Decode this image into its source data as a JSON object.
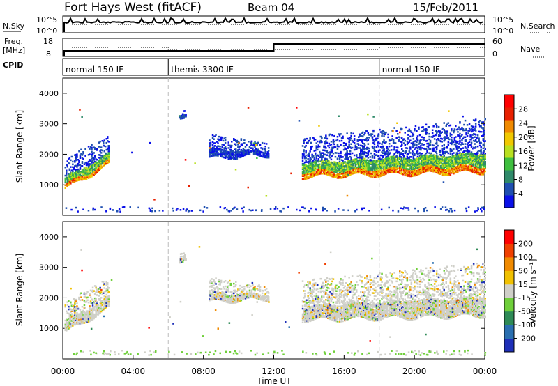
{
  "header": {
    "title": "Fort Hays West (fitACF)",
    "beam": "Beam 04",
    "date": "15/Feb/2011"
  },
  "strips": {
    "nsky_label": "N.Sky",
    "nsky_ticks": [
      "10^5",
      "10^0"
    ],
    "nsearch_label": "N.Search",
    "nsearch_ticks": [
      "10^5",
      "10^0"
    ],
    "freq_label": "Freq.",
    "freq_unit": "[MHz]",
    "freq_ticks": [
      "18",
      "8"
    ],
    "nave_label": "Nave",
    "nave_ticks": [
      "60",
      "0"
    ],
    "cpid_label": "CPID",
    "cpid_segments": [
      {
        "label": "normal 150 IF",
        "start_h": 0,
        "end_h": 6
      },
      {
        "label": "themis 3300 IF",
        "start_h": 6,
        "end_h": 18
      },
      {
        "label": "normal 150 IF",
        "start_h": 18,
        "end_h": 24
      }
    ]
  },
  "axes": {
    "xlabel": "Time UT",
    "xticks": [
      "00:00",
      "04:00",
      "08:00",
      "12:00",
      "16:00",
      "20:00",
      "00:00"
    ],
    "ylabel_power": "Slant Range [km]",
    "ylabel_velocity": "Slant Range [km]",
    "yticks": [
      "1000",
      "2000",
      "3000",
      "4000"
    ]
  },
  "colorbars": {
    "power": {
      "label": "Power [dB]",
      "ticks": [
        "4",
        "8",
        "12",
        "16",
        "20",
        "24",
        "28"
      ],
      "colors": [
        "#0a10e8",
        "#1f4fb0",
        "#2f8a6a",
        "#3fbf3f",
        "#b8e020",
        "#f0c800",
        "#f08a00",
        "#e82000",
        "#ff0000"
      ]
    },
    "velocity": {
      "label": "Velocity [m s⁻¹]",
      "ticks": [
        "200",
        "100",
        "50",
        "15",
        "-15",
        "-50",
        "-100",
        "-200"
      ],
      "colors": [
        "#1e2fb8",
        "#2a6fb0",
        "#2e8a56",
        "#6fcf3a",
        "#cfcfc8",
        "#f0c000",
        "#f08a00",
        "#f04000",
        "#ff0000"
      ]
    }
  },
  "chart_data": [
    {
      "type": "heatmap",
      "name": "power",
      "xlabel": "Time UT",
      "ylabel": "Slant Range [km]",
      "xlim": [
        0,
        24
      ],
      "ylim": [
        0,
        4500
      ],
      "zlabel": "Power [dB]",
      "zlim": [
        0,
        32
      ],
      "scatter_regions": [
        {
          "t_start": 0.1,
          "t_end": 2.6,
          "r_low_start": 900,
          "r_low_end": 1700,
          "r_high_start": 1900,
          "r_high_end": 2700,
          "dominant_db": 10
        },
        {
          "t_start": 6.6,
          "t_end": 7.0,
          "r_low_start": 3100,
          "r_low_end": 3200,
          "r_high_start": 3500,
          "r_high_end": 3500,
          "dominant_db": 6
        },
        {
          "t_start": 8.3,
          "t_end": 11.7,
          "r_low_start": 1900,
          "r_low_end": 2000,
          "r_high_start": 2700,
          "r_high_end": 2400,
          "dominant_db": 5
        },
        {
          "t_start": 13.6,
          "t_end": 24.0,
          "r_low_start": 1300,
          "r_low_end": 1450,
          "r_high_start": 2600,
          "r_high_end": 3200,
          "dominant_db": 14
        }
      ],
      "ground_scatter_range_km": [
        150,
        300
      ]
    },
    {
      "type": "heatmap",
      "name": "velocity",
      "xlabel": "Time UT",
      "ylabel": "Slant Range [km]",
      "xlim": [
        0,
        24
      ],
      "ylim": [
        0,
        4500
      ],
      "zlabel": "Velocity [m s⁻¹]",
      "zlim": [
        -250,
        250
      ],
      "scatter_regions": [
        {
          "t_start": 0.1,
          "t_end": 2.6,
          "r_low_start": 900,
          "r_low_end": 1700,
          "r_high_start": 1900,
          "r_high_end": 2700,
          "dominant_ms": 0
        },
        {
          "t_start": 6.6,
          "t_end": 7.0,
          "r_low_start": 3100,
          "r_low_end": 3200,
          "r_high_start": 3500,
          "r_high_end": 3500,
          "dominant_ms": 0
        },
        {
          "t_start": 8.3,
          "t_end": 11.7,
          "r_low_start": 1900,
          "r_low_end": 2000,
          "r_high_start": 2700,
          "r_high_end": 2400,
          "dominant_ms": 0
        },
        {
          "t_start": 13.6,
          "t_end": 24.0,
          "r_low_start": 1300,
          "r_low_end": 1450,
          "r_high_start": 2600,
          "r_high_end": 3200,
          "dominant_ms": 0
        }
      ],
      "ground_scatter_range_km": [
        150,
        300
      ]
    }
  ]
}
